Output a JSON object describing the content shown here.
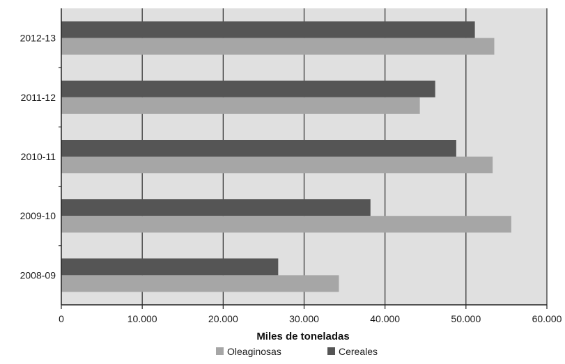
{
  "chart_data": {
    "type": "bar",
    "orientation": "horizontal",
    "categories": [
      "2008-09",
      "2009-10",
      "2010-11",
      "2011-12",
      "2012-13"
    ],
    "series": [
      {
        "name": "Cereales",
        "values": [
          26800,
          38200,
          48800,
          46200,
          51100
        ],
        "color": "#555555"
      },
      {
        "name": "Oleaginosas",
        "values": [
          34300,
          55600,
          53300,
          44300,
          53500
        ],
        "color": "#a6a6a6"
      }
    ],
    "title": "",
    "xlabel": "Miles de toneladas",
    "ylabel": "",
    "xlim": [
      0,
      60000
    ],
    "xticks": [
      "0",
      "10.000",
      "20.000",
      "30.000",
      "40.000",
      "50.000",
      "60.000"
    ],
    "grid": "vertical",
    "plot_background": "#e0e0e0",
    "legend_position": "bottom-center",
    "legend_order": [
      "Oleaginosas",
      "Cereales"
    ]
  }
}
